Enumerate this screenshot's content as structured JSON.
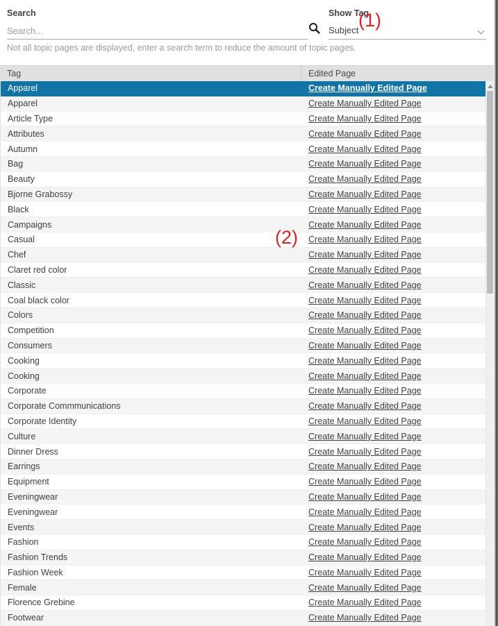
{
  "search": {
    "label": "Search",
    "placeholder": "Search...",
    "value": ""
  },
  "show_tag": {
    "label": "Show Tag",
    "value": "Subject"
  },
  "notice": "Not all topic pages are displayed, enter a search term to reduce the amount of topic pages.",
  "annotations": {
    "marker1": "(1)",
    "marker2": "(2)"
  },
  "table": {
    "columns": [
      "Tag",
      "Edited Page"
    ],
    "link_label": "Create Manually Edited Page",
    "selected_index": 0,
    "rows": [
      "Apparel",
      "Apparel",
      "Article Type",
      "Attributes",
      "Autumn",
      "Bag",
      "Beauty",
      "Bjorne Grabossy",
      "Black",
      "Campaigns",
      "Casual",
      "Chef",
      "Claret red color",
      "Classic",
      "Coal black color",
      "Colors",
      "Competition",
      "Consumers",
      "Cooking",
      "Cooking",
      "Corporate",
      "Corporate Commmunications",
      "Corporate Identity",
      "Culture",
      "Dinner Dress",
      "Earrings",
      "Equipment",
      "Eveningwear",
      "Eveningwear",
      "Events",
      "Fashion",
      "Fashion Trends",
      "Fashion Week",
      "Female",
      "Florence Grebine",
      "Footwear"
    ]
  },
  "icons": {
    "search": "search-icon",
    "chevron": "chevron-down-icon",
    "scroll_up": "scroll-up-arrow-icon"
  },
  "colors": {
    "selected_row": "#1173a6",
    "annotation_red": "#d92424",
    "link_text": "#3f3f3f",
    "header_bg": "#e0e0e0",
    "alt_row_bg": "#f4f4f4"
  }
}
